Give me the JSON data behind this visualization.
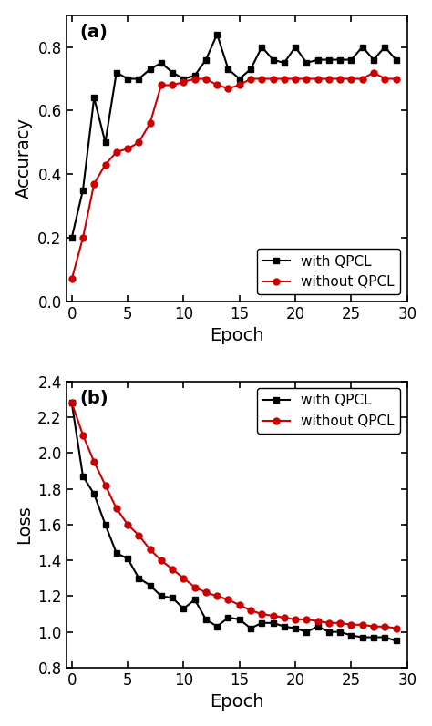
{
  "accuracy_epochs": [
    0,
    1,
    2,
    3,
    4,
    5,
    6,
    7,
    8,
    9,
    10,
    11,
    12,
    13,
    14,
    15,
    16,
    17,
    18,
    19,
    20,
    21,
    22,
    23,
    24,
    25,
    26,
    27,
    28,
    29
  ],
  "accuracy_with_qpcl": [
    0.2,
    0.35,
    0.64,
    0.5,
    0.72,
    0.7,
    0.7,
    0.73,
    0.75,
    0.72,
    0.7,
    0.71,
    0.76,
    0.84,
    0.73,
    0.7,
    0.73,
    0.8,
    0.76,
    0.75,
    0.8,
    0.75,
    0.76,
    0.76,
    0.76,
    0.76,
    0.8,
    0.76,
    0.8,
    0.76
  ],
  "accuracy_without_qpcl": [
    0.07,
    0.2,
    0.37,
    0.43,
    0.47,
    0.48,
    0.5,
    0.56,
    0.68,
    0.68,
    0.69,
    0.7,
    0.7,
    0.68,
    0.67,
    0.68,
    0.7,
    0.7,
    0.7,
    0.7,
    0.7,
    0.7,
    0.7,
    0.7,
    0.7,
    0.7,
    0.7,
    0.72,
    0.7,
    0.7
  ],
  "loss_epochs": [
    0,
    1,
    2,
    3,
    4,
    5,
    6,
    7,
    8,
    9,
    10,
    11,
    12,
    13,
    14,
    15,
    16,
    17,
    18,
    19,
    20,
    21,
    22,
    23,
    24,
    25,
    26,
    27,
    28,
    29
  ],
  "loss_with_qpcl": [
    2.28,
    1.87,
    1.77,
    1.6,
    1.44,
    1.41,
    1.3,
    1.26,
    1.2,
    1.19,
    1.13,
    1.18,
    1.07,
    1.03,
    1.08,
    1.07,
    1.02,
    1.05,
    1.05,
    1.03,
    1.02,
    1.0,
    1.03,
    1.0,
    1.0,
    0.98,
    0.97,
    0.97,
    0.97,
    0.95
  ],
  "loss_without_qpcl": [
    2.28,
    2.1,
    1.95,
    1.82,
    1.69,
    1.6,
    1.54,
    1.46,
    1.4,
    1.35,
    1.3,
    1.25,
    1.22,
    1.2,
    1.18,
    1.15,
    1.12,
    1.1,
    1.09,
    1.08,
    1.07,
    1.07,
    1.06,
    1.05,
    1.05,
    1.04,
    1.04,
    1.03,
    1.03,
    1.02
  ],
  "color_black": "#000000",
  "color_red": "#cc0000",
  "label_with_qpcl": "with QPCL",
  "label_without_qpcl": "without QPCL",
  "accuracy_ylabel": "Accuracy",
  "loss_ylabel": "Loss",
  "xlabel": "Epoch",
  "acc_ylim": [
    0.0,
    0.9
  ],
  "acc_yticks": [
    0.0,
    0.2,
    0.4,
    0.6,
    0.8
  ],
  "loss_ylim": [
    0.8,
    2.4
  ],
  "loss_yticks": [
    0.8,
    1.0,
    1.2,
    1.4,
    1.6,
    1.8,
    2.0,
    2.2,
    2.4
  ],
  "xlim": [
    -0.5,
    30
  ],
  "xticks": [
    0,
    5,
    10,
    15,
    20,
    25,
    30
  ],
  "label_a": "(a)",
  "label_b": "(b)",
  "bg_color": "#ffffff",
  "marker_with_qpcl": "s",
  "marker_without_qpcl": "o",
  "markersize": 5,
  "linewidth": 1.5,
  "fontsize_label": 14,
  "fontsize_tick": 12,
  "fontsize_legend": 11,
  "fontsize_panel": 14
}
